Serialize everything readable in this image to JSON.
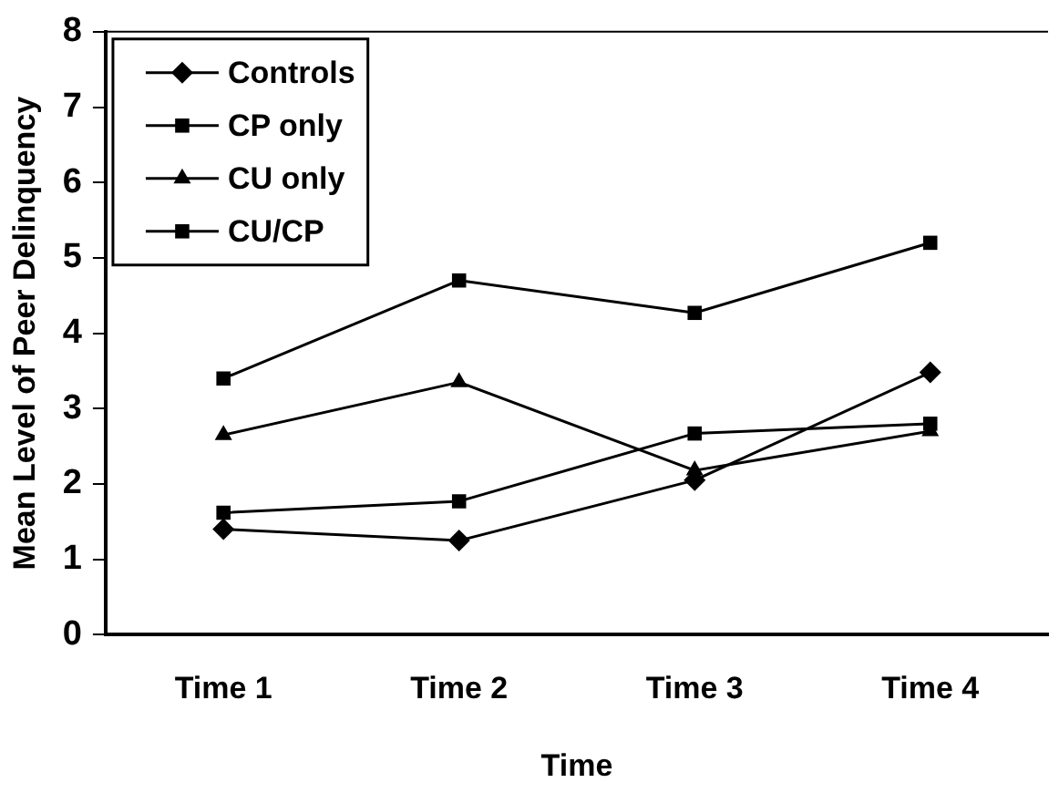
{
  "chart_data": {
    "type": "line",
    "xlabel": "Time",
    "ylabel": "Mean Level of Peer Delinquency",
    "categories": [
      "Time 1",
      "Time 2",
      "Time 3",
      "Time 4"
    ],
    "ylim": [
      0,
      8
    ],
    "yticks": [
      0,
      1,
      2,
      3,
      4,
      5,
      6,
      7,
      8
    ],
    "grid": false,
    "legend": "top left",
    "series": [
      {
        "name": "Controls",
        "color": "#000000",
        "marker": "diamond",
        "values": [
          1.4,
          1.25,
          2.05,
          3.48
        ]
      },
      {
        "name": "CP only",
        "color": "#000000",
        "marker": "square",
        "values": [
          1.62,
          1.77,
          2.67,
          2.8
        ]
      },
      {
        "name": "CU only",
        "color": "#000000",
        "marker": "triangle",
        "values": [
          2.65,
          3.35,
          2.18,
          2.7
        ]
      },
      {
        "name": "CU/CP",
        "color": "#000000",
        "marker": "square",
        "values": [
          3.4,
          4.7,
          4.27,
          5.2
        ]
      }
    ]
  }
}
